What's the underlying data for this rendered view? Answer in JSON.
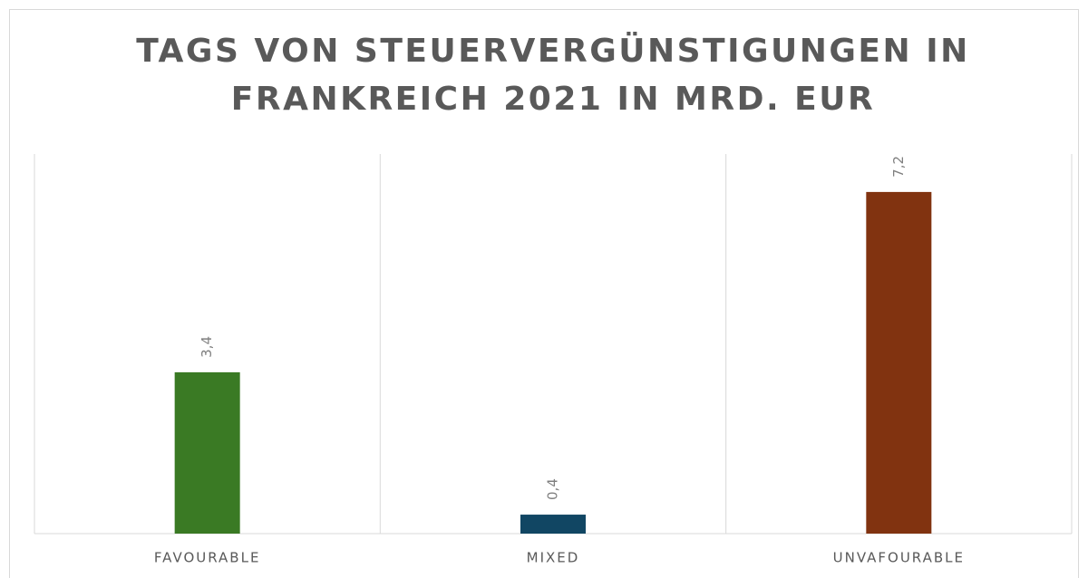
{
  "chart_data": {
    "type": "bar",
    "title": [
      "TAGS VON STEUERVERGÜNSTIGUNGEN IN",
      "FRANKREICH 2021 IN MRD. EUR"
    ],
    "categories": [
      "FAVOURABLE",
      "MIXED",
      "UNVAFOURABLE"
    ],
    "values": [
      3.4,
      0.4,
      7.2
    ],
    "value_labels": [
      "3,4",
      "0,4",
      "7,2"
    ],
    "colors": [
      "#3a7a24",
      "#114663",
      "#813310"
    ],
    "ylim": [
      0,
      8
    ]
  }
}
